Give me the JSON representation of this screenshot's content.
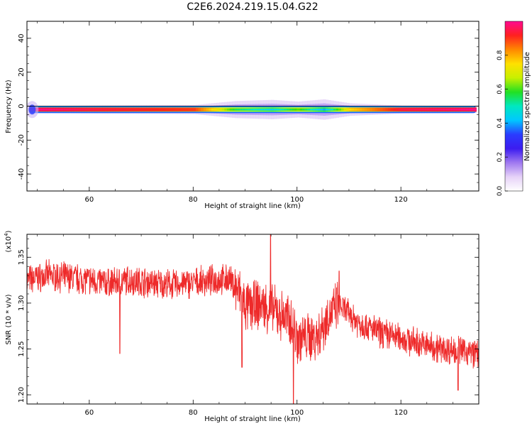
{
  "title": "C2E6.2024.219.15.04.G22",
  "colorbar": {
    "label": "Normalized spectral amplitude",
    "ticks": [
      "0.0",
      "0.2",
      "0.4",
      "0.6",
      "0.8"
    ],
    "tick_values": [
      0.0,
      0.2,
      0.4,
      0.6,
      0.8
    ],
    "range": [
      0,
      1
    ],
    "colormap": [
      "#ffffff",
      "#e6d2f8",
      "#9f78f0",
      "#3c1cf0",
      "#2a3cff",
      "#00c8ff",
      "#00e8c0",
      "#22e022",
      "#c8f000",
      "#ffe000",
      "#ff8800",
      "#ff2020",
      "#ff0a90"
    ]
  },
  "chart_data": [
    {
      "type": "heatmap",
      "title": "C2E6.2024.219.15.04.G22",
      "xlabel": "Height of straight line (km)",
      "ylabel": "Frequency (Hz)",
      "xlim": [
        48,
        135
      ],
      "ylim": [
        -50,
        50
      ],
      "xticks": [
        60,
        80,
        100,
        120
      ],
      "xtick_labels": [
        "60",
        "80",
        "100",
        "120"
      ],
      "yticks": [
        -40,
        -20,
        0,
        20,
        40
      ],
      "ytick_labels": [
        "-40",
        "-20",
        "0",
        "20",
        "40"
      ],
      "zero_line": true,
      "ridge": {
        "frequency_hz": -2,
        "x_start": 48.5,
        "x_end": 134.5,
        "note_points": [
          {
            "x": 48.5,
            "amp": 1.0
          },
          {
            "x": 60,
            "amp": 0.95
          },
          {
            "x": 80,
            "amp": 0.9
          },
          {
            "x": 88,
            "amp": 0.55
          },
          {
            "x": 95,
            "amp": 0.45
          },
          {
            "x": 100,
            "amp": 0.6
          },
          {
            "x": 105,
            "amp": 0.4
          },
          {
            "x": 110,
            "amp": 0.75
          },
          {
            "x": 120,
            "amp": 0.95
          },
          {
            "x": 134.5,
            "amp": 1.0
          }
        ]
      }
    },
    {
      "type": "line",
      "xlabel": "Height of straight line (km)",
      "ylabel": "SNR (10 * v/v)",
      "y_multiplier_label": "(x10",
      "y_multiplier_exp": "4",
      "y_multiplier_close": ")",
      "xlim": [
        48,
        135
      ],
      "ylim": [
        1.19,
        1.375
      ],
      "xticks": [
        60,
        80,
        100,
        120
      ],
      "xtick_labels": [
        "60",
        "80",
        "100",
        "120"
      ],
      "yticks": [
        1.2,
        1.25,
        1.3,
        1.35
      ],
      "ytick_labels": [
        "1.20",
        "1.25",
        "1.30",
        "1.35"
      ],
      "series": [
        {
          "color": "#ee2a2a",
          "trend_x": [
            48,
            52,
            56,
            60,
            64,
            68,
            72,
            76,
            80,
            84,
            87,
            89,
            90,
            93,
            96,
            99,
            100,
            102,
            104,
            106,
            108,
            112,
            116,
            120,
            124,
            128,
            132,
            135
          ],
          "trend_y": [
            1.325,
            1.33,
            1.328,
            1.325,
            1.322,
            1.325,
            1.322,
            1.32,
            1.322,
            1.325,
            1.326,
            1.31,
            1.295,
            1.298,
            1.29,
            1.28,
            1.262,
            1.262,
            1.265,
            1.285,
            1.298,
            1.278,
            1.268,
            1.262,
            1.255,
            1.25,
            1.248,
            1.245
          ],
          "noise_amplitude": 0.014,
          "spikes": [
            {
              "x": 65.9,
              "y": 1.245
            },
            {
              "x": 89.4,
              "y": 1.23
            },
            {
              "x": 94.9,
              "y": 1.375
            },
            {
              "x": 99.3,
              "y": 1.19
            },
            {
              "x": 108.1,
              "y": 1.335
            },
            {
              "x": 131.0,
              "y": 1.205
            }
          ]
        }
      ]
    }
  ]
}
